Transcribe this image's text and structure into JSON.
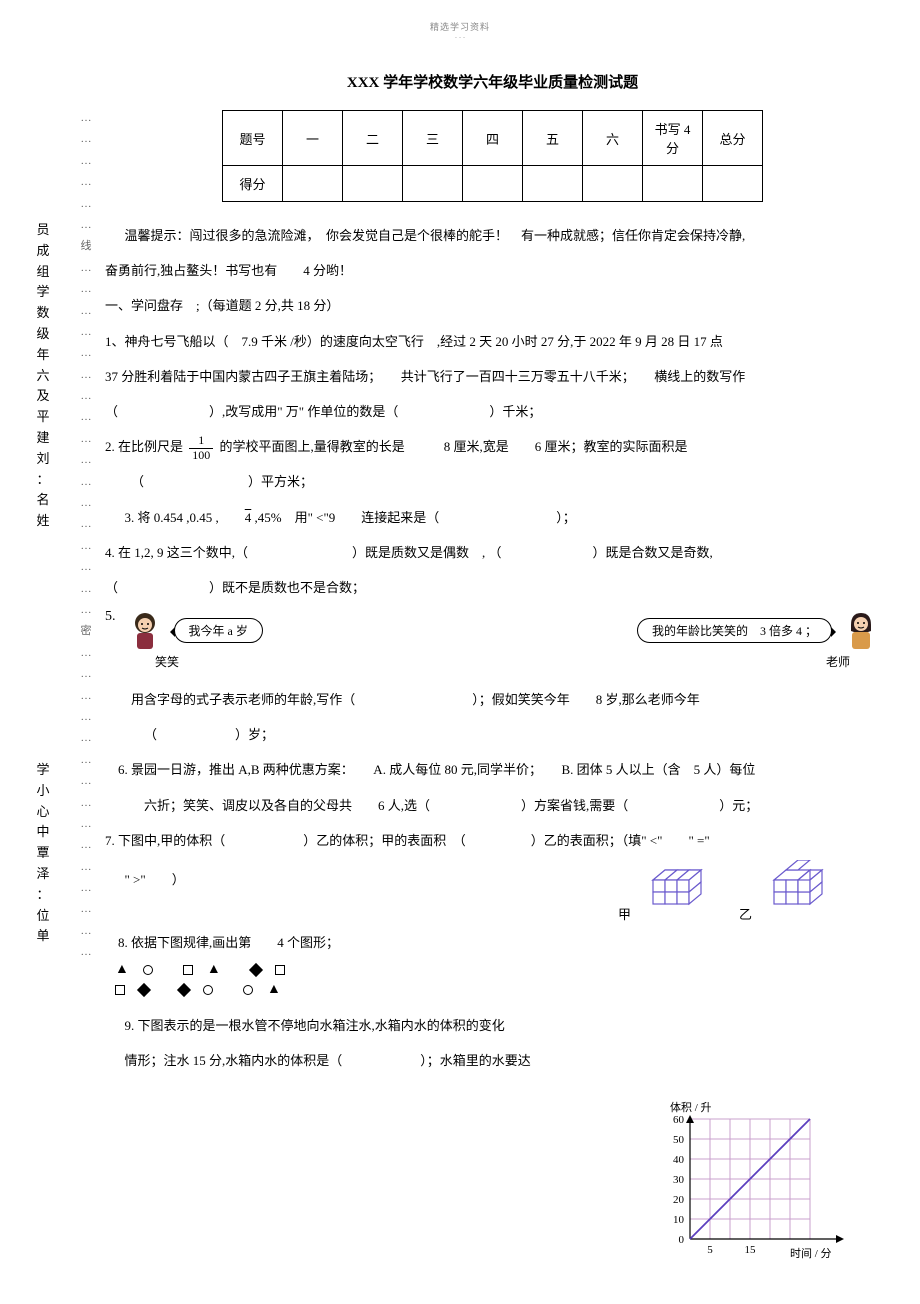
{
  "header": {
    "top": "精选学习资料",
    "sub": "- - -"
  },
  "title": "XXX 学年学校数学六年级毕业质量检测试题",
  "leftText1": "员成组学数级年六及平建刘：名姓",
  "leftText2": "学小心中覃泽：位单",
  "dotsCol": "… … … … … … 线 … … … … … … … … … … … … … … … … … 密 … … … … … … … … … … … … … … …",
  "scoreTable": {
    "headers": [
      "题号",
      "一",
      "二",
      "三",
      "四",
      "五",
      "六",
      "书写 4\n分",
      "总分"
    ],
    "row2first": "得分"
  },
  "tip": "温馨提示：闯过很多的急流险滩，　你会发觉自己是个很棒的舵手！　有一种成就感；信任你肯定会保持冷静,",
  "tip2": "奋勇前行,独占鳌头！书写也有　　4 分哟！",
  "section1": "一、学问盘存　;（每道题 2 分,共 18 分）",
  "q1a": "1、神舟七号飞船以（　7.9 千米 /秒）的速度向太空飞行　,经过 2 天 20 小时 27 分,于 2022 年 9 月 28 日 17 点",
  "q1b": "37 分胜利着陆于中国内蒙古四子王旗主着陆场；　　共计飞行了一百四十三万零五十八千米；　　横线上的数写作",
  "q1c": "（　　　　　　　）,改写成用\" 万\" 作单位的数是（　　　　　　　）千米；",
  "q2a": "2. 在比例尺是",
  "q2_num": "1",
  "q2_den": "100",
  "q2b": "的学校平面图上,量得教室的长是　　　8 厘米,宽是　　6 厘米；教室的实际面积是",
  "q2c": "（　　　　　　　　）平方米；",
  "q3": "3. 将 0.454 ,0.45 ,　　4 ,45%　用\" <\"9　　连接起来是（　　　　　　　　　）；",
  "q4a": "4. 在 1,2, 9 这三个数中,（　　　　　　　　）既是质数又是偶数　, （　　　　　　　）既是合数又是奇数,",
  "q4b": "（　　　　　　　）既不是质数也不是合数；",
  "q5num": "5.",
  "q5_speech1": "我今年 a 岁",
  "q5_speech2": "我的年龄比笑笑的　3 倍多 4 ；",
  "q5_cap1": "笑笑",
  "q5_cap2": "老师",
  "q5c": "用含字母的式子表示老师的年龄,写作（　　　　　　　　　）；假如笑笑今年　　8 岁,那么老师今年",
  "q5d": "（　　　　　　）岁；",
  "q6a": "6. 景园一日游，推出 A,B 两种优惠方案：　　A. 成人每位 80 元,同学半价；　　B. 团体 5 人以上（含　5 人）每位",
  "q6b": "六折；笑笑、调皮以及各自的父母共　　6 人,选（　　　　　　　）方案省钱,需要（　　　　　　　）元；",
  "q7a": "7. 下图中,甲的体积（　　　　　　）乙的体积；甲的表面积　（　　　　　）乙的表面积；（填\" <\"　　\" =\"",
  "q7b": "\" >\"　　）",
  "q7_jia": "甲",
  "q7_yi": "乙",
  "q8": "8. 依据下图规律,画出第　　4 个图形；",
  "q9a": "9. 下图表示的是一根水管不停地向水箱注水,水箱内水的体积的变化",
  "q9b": "情形；注水 15 分,水箱内水的体积是（　　　　　　）；水箱里的水要达",
  "chart": {
    "yLabel": "体积 / 升",
    "yTicks": [
      "60",
      "50",
      "40",
      "30",
      "20",
      "10",
      "0"
    ],
    "xTicks": [
      "5",
      "15"
    ],
    "xLabel": "时间 / 分",
    "grid_color": "#c8a0cc",
    "line_color": "#5b3fbf",
    "background": "#ffffff"
  },
  "cubes": {
    "stroke": "#6a5acd",
    "fill": "#ffffff"
  },
  "avatarGirl": {
    "hair": "#3a2a1a",
    "face": "#f5d0b0",
    "shirt": "#8b2e3e"
  },
  "avatarTeacher": {
    "hair": "#2a1a1a",
    "face": "#f5d0b0",
    "shirt": "#d99a4a"
  }
}
